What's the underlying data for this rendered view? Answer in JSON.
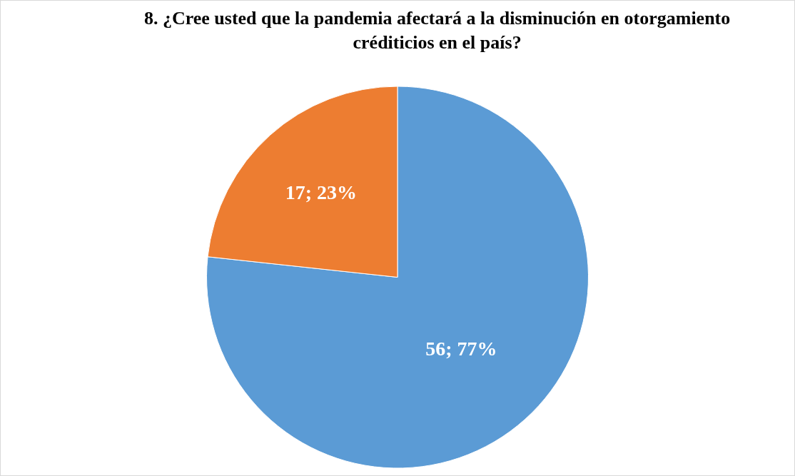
{
  "chart_data": {
    "type": "pie",
    "title": "8. ¿Cree usted que la pandemia afectará a la disminución en otorgamiento créditicios en el país?",
    "categories": [
      null,
      null
    ],
    "values": [
      56,
      17
    ],
    "colors": [
      "#5b9bd5",
      "#ed7d31"
    ],
    "value_labels": [
      "56; 77%",
      "17; 23%"
    ]
  }
}
